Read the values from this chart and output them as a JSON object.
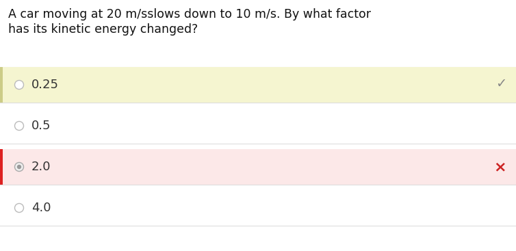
{
  "question_line1": "A car moving at 20 m/sslows down to 10 m/s. By what factor",
  "question_line2": "has its kinetic energy changed?",
  "options": [
    "0.25",
    "0.5",
    "2.0",
    "4.0"
  ],
  "correct_index": 0,
  "wrong_index": 2,
  "correct_bg": "#f5f5d0",
  "wrong_bg": "#fce8e8",
  "default_bg": "#ffffff",
  "check_color": "#888888",
  "x_color": "#cc2222",
  "radio_color": "#bbbbbb",
  "radio_filled_color": "#aaaaaa",
  "text_color": "#333333",
  "question_color": "#111111",
  "left_bar_correct": "#cccc88",
  "left_bar_wrong": "#dd2222",
  "font_size_question": 12.5,
  "font_size_option": 13.0,
  "bg_color": "#ffffff"
}
